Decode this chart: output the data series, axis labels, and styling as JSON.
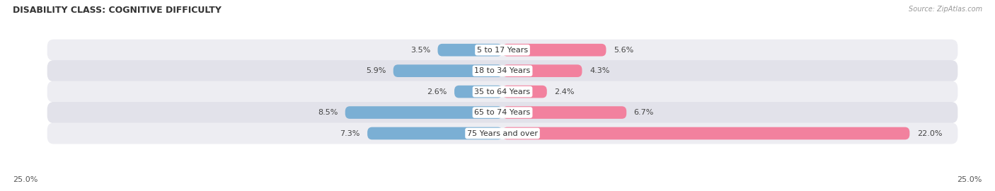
{
  "title": "DISABILITY CLASS: COGNITIVE DIFFICULTY",
  "source": "Source: ZipAtlas.com",
  "categories": [
    "5 to 17 Years",
    "18 to 34 Years",
    "35 to 64 Years",
    "65 to 74 Years",
    "75 Years and over"
  ],
  "male_values": [
    3.5,
    5.9,
    2.6,
    8.5,
    7.3
  ],
  "female_values": [
    5.6,
    4.3,
    2.4,
    6.7,
    22.0
  ],
  "male_color": "#7bafd4",
  "female_color": "#f2819e",
  "max_val": 25.0,
  "title_fontsize": 9,
  "label_fontsize": 8,
  "value_fontsize": 8,
  "tick_fontsize": 8,
  "background_color": "#ffffff",
  "bar_height": 0.6,
  "row_bg_light": "#ededf2",
  "row_bg_dark": "#e2e2ea",
  "pill_bg": "#f5f5f8"
}
